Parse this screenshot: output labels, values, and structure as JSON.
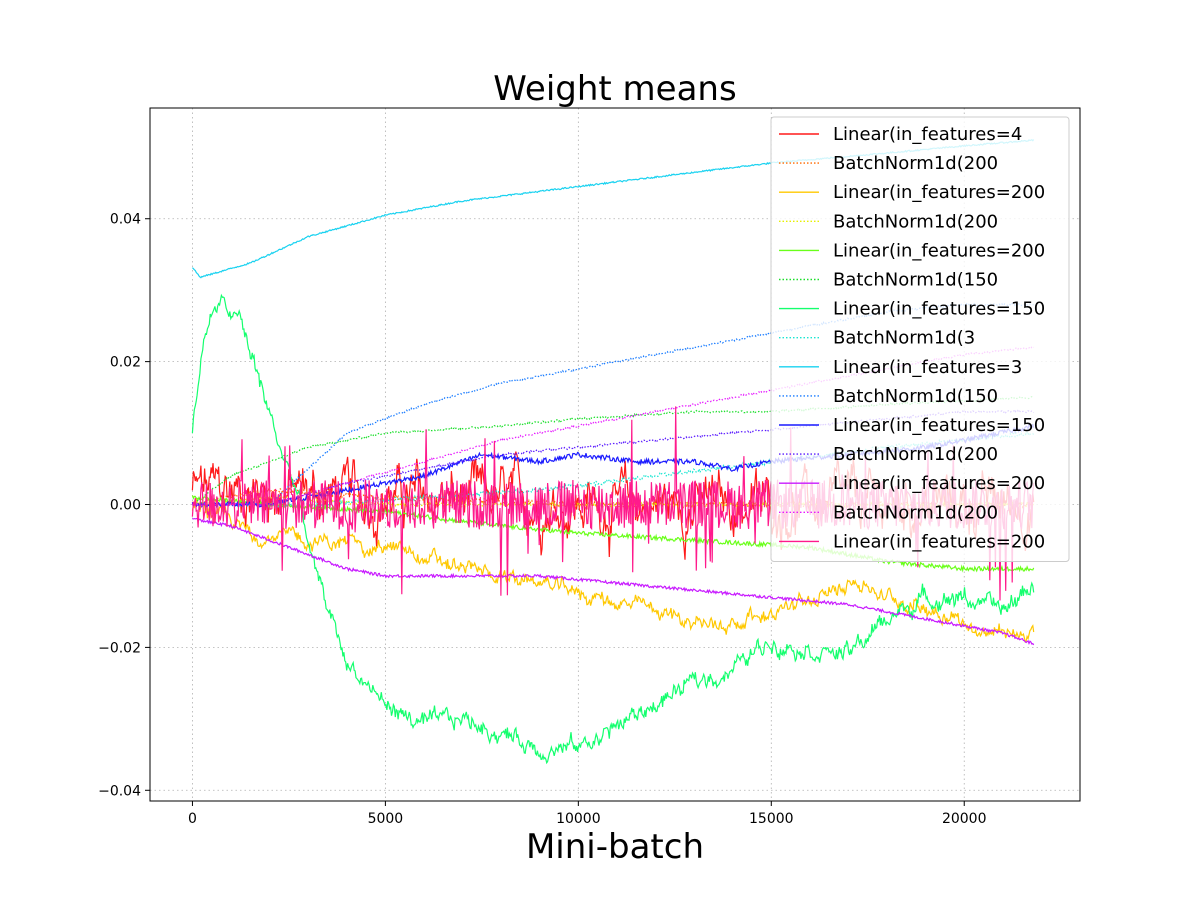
{
  "chart_data": {
    "type": "line",
    "title": "Weight means",
    "xlabel": "Mini-batch",
    "ylabel": "",
    "xlim": [
      -1100,
      23000
    ],
    "ylim": [
      -0.0415,
      0.0555
    ],
    "xticks": [
      0,
      5000,
      10000,
      15000,
      20000
    ],
    "xtick_labels": [
      "0",
      "5000",
      "10000",
      "15000",
      "20000"
    ],
    "yticks": [
      -0.04,
      -0.02,
      0.0,
      0.02,
      0.04
    ],
    "ytick_labels": [
      "−0.04",
      "−0.02",
      "0.00",
      "0.02",
      "0.04"
    ],
    "grid": true,
    "legend": "top-right",
    "series": [
      {
        "name": "Linear(in_features=4",
        "color": "#ff1a1a",
        "style": "solid",
        "noise": 0.004,
        "x": [
          0,
          2000,
          5000,
          10000,
          15000,
          20000,
          21800
        ],
        "y": [
          0.002,
          0.002,
          0.001,
          0.0,
          0.0,
          0.0,
          0.0
        ]
      },
      {
        "name": "BatchNorm1d(200",
        "color": "#ff6a00",
        "style": "dotted",
        "noise": 0.0008,
        "x": [
          0,
          2000,
          5000,
          10000,
          15000,
          20000,
          21800
        ],
        "y": [
          0.0,
          0.002,
          0.001,
          0.0,
          0.0,
          0.0,
          0.0
        ]
      },
      {
        "name": "Linear(in_features=200",
        "color": "#ffc800",
        "style": "solid",
        "noise": 0.0012,
        "x": [
          0,
          1500,
          3000,
          5000,
          7000,
          9000,
          10500,
          12000,
          13500,
          15000,
          16500,
          17000,
          18000,
          19500,
          20500,
          21800
        ],
        "y": [
          0.0,
          -0.004,
          -0.005,
          -0.006,
          -0.009,
          -0.011,
          -0.013,
          -0.015,
          -0.017,
          -0.015,
          -0.013,
          -0.01,
          -0.013,
          -0.015,
          -0.018,
          -0.018
        ]
      },
      {
        "name": "BatchNorm1d(200",
        "color": "#e6f000",
        "style": "dotted",
        "noise": 0.0005,
        "x": [
          0,
          2000,
          5000,
          10000,
          15000,
          20000,
          21800
        ],
        "y": [
          0.0,
          0.001,
          0.0,
          0.0,
          0.0,
          0.0,
          0.0
        ]
      },
      {
        "name": "Linear(in_features=200",
        "color": "#6aff1a",
        "style": "solid",
        "noise": 0.0006,
        "x": [
          0,
          2000,
          5000,
          8000,
          10000,
          13000,
          16000,
          18000,
          20000,
          21800
        ],
        "y": [
          0.001,
          0.0,
          -0.001,
          -0.003,
          -0.004,
          -0.005,
          -0.006,
          -0.008,
          -0.009,
          -0.009
        ]
      },
      {
        "name": "BatchNorm1d(150",
        "color": "#1adf2a",
        "style": "dotted",
        "noise": 0.0003,
        "x": [
          0,
          1000,
          2000,
          3000,
          5000,
          8000,
          10000,
          13000,
          15000,
          18000,
          21800
        ],
        "y": [
          0.0,
          0.004,
          0.006,
          0.008,
          0.01,
          0.011,
          0.012,
          0.013,
          0.013,
          0.014,
          0.015
        ]
      },
      {
        "name": "Linear(in_features=150",
        "color": "#14ff6e",
        "style": "solid",
        "noise": 0.0014,
        "x": [
          0,
          300,
          700,
          1200,
          1700,
          2200,
          2700,
          3200,
          4000,
          5000,
          6000,
          7000,
          8000,
          9000,
          10000,
          11000,
          12000,
          13000,
          14000,
          15000,
          16000,
          17000,
          18000,
          19000,
          20000,
          21000,
          21800
        ],
        "y": [
          0.01,
          0.024,
          0.028,
          0.026,
          0.018,
          0.009,
          0.002,
          -0.01,
          -0.022,
          -0.028,
          -0.031,
          -0.03,
          -0.032,
          -0.034,
          -0.034,
          -0.031,
          -0.028,
          -0.025,
          -0.023,
          -0.019,
          -0.02,
          -0.021,
          -0.016,
          -0.013,
          -0.013,
          -0.015,
          -0.011
        ]
      },
      {
        "name": "BatchNorm1d(3",
        "color": "#1ae6d2",
        "style": "dotted",
        "noise": 0.0006,
        "x": [
          0,
          3000,
          6000,
          9000,
          12000,
          15000,
          18000,
          20000,
          21800
        ],
        "y": [
          0.0,
          0.0,
          0.001,
          0.002,
          0.004,
          0.006,
          0.008,
          0.009,
          0.01
        ]
      },
      {
        "name": "Linear(in_features=3",
        "color": "#1ad2f0",
        "style": "solid",
        "noise": 0.0002,
        "x": [
          0,
          200,
          1500,
          3000,
          5000,
          7000,
          10000,
          13000,
          15000,
          18000,
          20000,
          21800
        ],
        "y": [
          0.0332,
          0.0318,
          0.0338,
          0.0375,
          0.0405,
          0.0425,
          0.0445,
          0.0465,
          0.0478,
          0.0492,
          0.0502,
          0.051
        ]
      },
      {
        "name": "BatchNorm1d(150",
        "color": "#1a7cff",
        "style": "dotted",
        "noise": 0.0003,
        "x": [
          0,
          2000,
          4000,
          6000,
          8000,
          10000,
          12000,
          14000,
          16000,
          18000,
          20000,
          21800
        ],
        "y": [
          0.0,
          0.0,
          0.01,
          0.014,
          0.017,
          0.019,
          0.021,
          0.023,
          0.025,
          0.027,
          0.028,
          0.028
        ]
      },
      {
        "name": "Linear(in_features=150",
        "color": "#1a1aff",
        "style": "solid",
        "noise": 0.0007,
        "x": [
          0,
          2000,
          4000,
          6000,
          7500,
          9000,
          10000,
          11500,
          13000,
          14000,
          15000,
          17000,
          19000,
          20000,
          21800
        ],
        "y": [
          0.0,
          0.0,
          0.002,
          0.004,
          0.007,
          0.006,
          0.007,
          0.006,
          0.006,
          0.005,
          0.006,
          0.007,
          0.008,
          0.009,
          0.011
        ]
      },
      {
        "name": "BatchNorm1d(200",
        "color": "#5a1aff",
        "style": "dotted",
        "noise": 0.0003,
        "x": [
          0,
          2000,
          4000,
          6000,
          8000,
          10000,
          12000,
          14000,
          16000,
          18000,
          20000,
          21800
        ],
        "y": [
          0.0,
          0.0,
          0.003,
          0.005,
          0.007,
          0.008,
          0.009,
          0.01,
          0.011,
          0.012,
          0.013,
          0.013
        ]
      },
      {
        "name": "Linear(in_features=200",
        "color": "#c81aff",
        "style": "solid",
        "noise": 0.0004,
        "x": [
          0,
          1000,
          2000,
          3000,
          4000,
          5000,
          7000,
          9000,
          11000,
          13000,
          15000,
          17000,
          19000,
          21000,
          21800
        ],
        "y": [
          -0.002,
          -0.003,
          -0.005,
          -0.007,
          -0.009,
          -0.01,
          -0.01,
          -0.01,
          -0.011,
          -0.012,
          -0.013,
          -0.014,
          -0.016,
          -0.018,
          -0.0195
        ]
      },
      {
        "name": "BatchNorm1d(200",
        "color": "#e61aff",
        "style": "dotted",
        "noise": 0.0003,
        "x": [
          0,
          2000,
          4000,
          6000,
          8000,
          10000,
          12000,
          14000,
          16000,
          18000,
          20000,
          21800
        ],
        "y": [
          0.0,
          0.0,
          0.003,
          0.006,
          0.009,
          0.011,
          0.013,
          0.015,
          0.017,
          0.019,
          0.021,
          0.022
        ]
      },
      {
        "name": "Linear(in_features=200",
        "color": "#ff1a8c",
        "style": "solid",
        "noise": 0.0035,
        "spiky": true,
        "x": [
          0,
          2000,
          5000,
          10000,
          15000,
          20000,
          21800
        ],
        "y": [
          0.0,
          0.0,
          0.0,
          0.0,
          0.0,
          0.0,
          0.0
        ]
      }
    ]
  }
}
